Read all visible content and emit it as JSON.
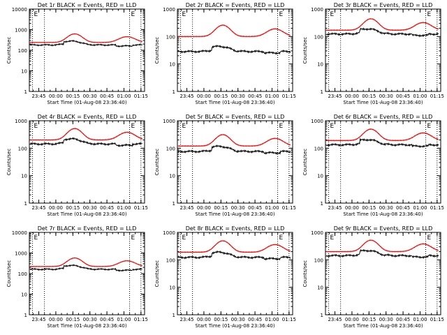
{
  "chart_data": [
    {
      "type": "line",
      "title": "Det 1r BLACK = Events, RED = LLD",
      "xlabel": "Start Time (01-Aug-08 23:36:40)",
      "ylabel": "Counts/sec",
      "yscale": "log",
      "ylim": [
        1,
        10000
      ],
      "x_ticks": [
        "23:45",
        "00:00",
        "00:15",
        "00:30",
        "00:45",
        "01:00",
        "01:15"
      ],
      "y_ticks": [
        "1",
        "10",
        "100",
        "1000",
        "10000"
      ],
      "marker": "E",
      "black_base": 190,
      "red_base": 240
    },
    {
      "type": "line",
      "title": "Det 2r BLACK = Events, RED = LLD",
      "xlabel": "Start Time (01-Aug-08 23:36:40)",
      "ylabel": "Counts/sec",
      "yscale": "log",
      "ylim": [
        1,
        1000
      ],
      "x_ticks": [
        "23:45",
        "00:00",
        "00:15",
        "00:30",
        "00:45",
        "01:00",
        "01:15"
      ],
      "y_ticks": [
        "1",
        "10",
        "100",
        "1000"
      ],
      "marker": "E",
      "black_base": 30,
      "red_base": 100
    },
    {
      "type": "line",
      "title": "Det 3r BLACK = Events, RED = LLD",
      "xlabel": "Start Time (01-Aug-08 23:36:40)",
      "ylabel": "Counts/sec",
      "yscale": "log",
      "ylim": [
        1,
        1000
      ],
      "x_ticks": [
        "23:45",
        "00:00",
        "00:15",
        "00:30",
        "00:45",
        "01:00",
        "01:15"
      ],
      "y_ticks": [
        "1",
        "10",
        "100",
        "1000"
      ],
      "marker": "E",
      "black_base": 130,
      "red_base": 170
    },
    {
      "type": "line",
      "title": "Det 4r BLACK = Events, RED = LLD",
      "xlabel": "Start Time (01-Aug-08 23:36:40)",
      "ylabel": "Counts/sec",
      "yscale": "log",
      "ylim": [
        1,
        1000
      ],
      "x_ticks": [
        "23:45",
        "00:00",
        "00:15",
        "00:30",
        "00:45",
        "01:00",
        "01:15"
      ],
      "y_ticks": [
        "1",
        "10",
        "100",
        "1000"
      ],
      "marker": "E",
      "black_base": 150,
      "red_base": 200
    },
    {
      "type": "line",
      "title": "Det 5r BLACK = Events, RED = LLD",
      "xlabel": "Start Time (01-Aug-08 23:36:40)",
      "ylabel": "Counts/sec",
      "yscale": "log",
      "ylim": [
        1,
        1000
      ],
      "x_ticks": [
        "23:45",
        "00:00",
        "00:15",
        "00:30",
        "00:45",
        "01:00",
        "01:15"
      ],
      "y_ticks": [
        "1",
        "10",
        "100",
        "1000"
      ],
      "marker": "E",
      "black_base": 80,
      "red_base": 120
    },
    {
      "type": "line",
      "title": "Det 6r BLACK = Events, RED = LLD",
      "xlabel": "Start Time (01-Aug-08 23:36:40)",
      "ylabel": "Counts/sec",
      "yscale": "log",
      "ylim": [
        1,
        1000
      ],
      "x_ticks": [
        "23:45",
        "00:00",
        "00:15",
        "00:30",
        "00:45",
        "01:00",
        "01:15"
      ],
      "y_ticks": [
        "1",
        "10",
        "100",
        "1000"
      ],
      "marker": "E",
      "black_base": 140,
      "red_base": 190
    },
    {
      "type": "line",
      "title": "Det 7r BLACK = Events, RED = LLD",
      "xlabel": "Start Time (01-Aug-08 23:36:40)",
      "ylabel": "Counts/sec",
      "yscale": "log",
      "ylim": [
        1,
        10000
      ],
      "x_ticks": [
        "23:45",
        "00:00",
        "00:15",
        "00:30",
        "00:45",
        "01:00",
        "01:15"
      ],
      "y_ticks": [
        "1",
        "10",
        "100",
        "1000",
        "10000"
      ],
      "marker": "E",
      "black_base": 170,
      "red_base": 220
    },
    {
      "type": "line",
      "title": "Det 8r BLACK = Events, RED = LLD",
      "xlabel": "Start Time (01-Aug-08 23:36:40)",
      "ylabel": "Counts/sec",
      "yscale": "log",
      "ylim": [
        1,
        1000
      ],
      "x_ticks": [
        "23:45",
        "00:00",
        "00:15",
        "00:30",
        "00:45",
        "01:00",
        "01:15"
      ],
      "y_ticks": [
        "1",
        "10",
        "100",
        "1000"
      ],
      "marker": "E",
      "black_base": 130,
      "red_base": 190
    },
    {
      "type": "line",
      "title": "Det 9r BLACK = Events, RED = LLD",
      "xlabel": "Start Time (01-Aug-08 23:36:40)",
      "ylabel": "Counts/sec",
      "yscale": "log",
      "ylim": [
        1,
        1000
      ],
      "x_ticks": [
        "23:45",
        "00:00",
        "00:15",
        "00:30",
        "00:45",
        "01:00",
        "01:15"
      ],
      "y_ticks": [
        "1",
        "10",
        "100",
        "1000"
      ],
      "marker": "E",
      "black_base": 150,
      "red_base": 200
    }
  ],
  "colors": {
    "events": "#000000",
    "lld": "#ff0000",
    "background": "#ffffff",
    "axes": "#000000"
  }
}
